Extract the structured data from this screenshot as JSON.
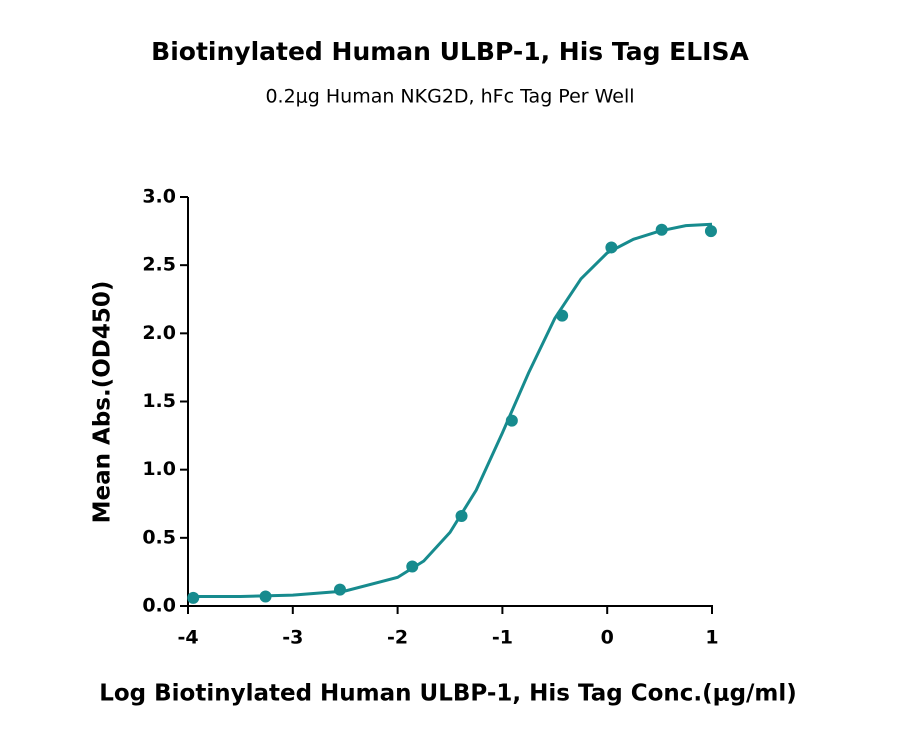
{
  "chart_data": {
    "type": "scatter",
    "title": "Biotinylated Human ULBP-1, His Tag ELISA",
    "subtitle": "0.2μg Human NKG2D, hFc Tag Per Well",
    "x_label": "Log Biotinylated Human ULBP-1, His Tag Conc.(μg/ml)",
    "y_label": "Mean Abs.(OD450)",
    "xlim": [
      -4,
      1
    ],
    "ylim": [
      0,
      3
    ],
    "xticks": [
      -4,
      -3,
      -2,
      -1,
      0,
      1
    ],
    "yticks": [
      {
        "value": 0,
        "label": "0.0"
      },
      0.5,
      {
        "value": 1,
        "label": "1.0"
      },
      1.5,
      {
        "value": 2,
        "label": "2.0"
      },
      2.5,
      {
        "value": 3,
        "label": "3.0"
      }
    ],
    "color": "#178b8e",
    "points": {
      "x": [
        -3.95,
        -3.26,
        -2.55,
        -1.86,
        -1.39,
        -0.91,
        -0.43,
        0.04,
        0.52,
        0.99
      ],
      "values": [
        0.06,
        0.07,
        0.12,
        0.29,
        0.66,
        1.36,
        2.13,
        2.63,
        2.76,
        2.75
      ]
    },
    "curve": {
      "x": [
        -4,
        -3.5,
        -3,
        -2.5,
        -2,
        -1.75,
        -1.5,
        -1.25,
        -1,
        -0.75,
        -0.5,
        -0.25,
        0,
        0.25,
        0.5,
        0.75,
        1
      ],
      "values": [
        0.07,
        0.07,
        0.08,
        0.11,
        0.21,
        0.33,
        0.54,
        0.85,
        1.27,
        1.71,
        2.11,
        2.4,
        2.59,
        2.69,
        2.75,
        2.79,
        2.8
      ]
    }
  }
}
